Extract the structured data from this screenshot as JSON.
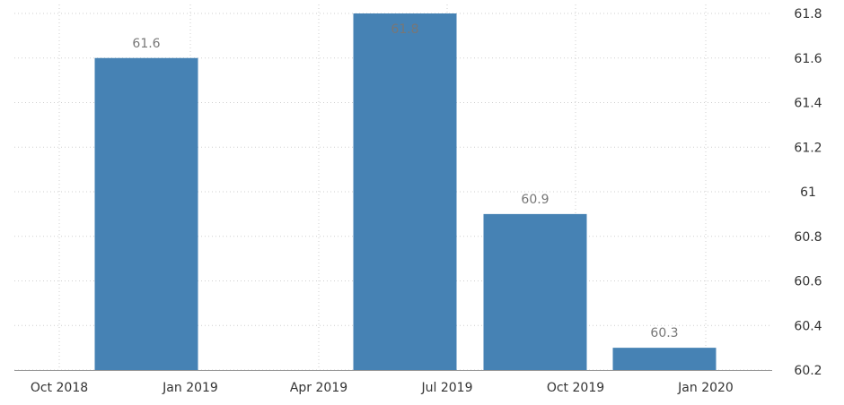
{
  "chart_data": {
    "type": "bar",
    "x_ticks": [
      "Oct 2018",
      "Jan 2019",
      "Apr 2019",
      "Jul 2019",
      "Oct 2019",
      "Jan 2020"
    ],
    "categories": [
      "Dec 2018",
      "Jun 2019",
      "Sep 2019",
      "Dec 2019"
    ],
    "values": [
      61.6,
      61.8,
      60.9,
      60.3
    ],
    "data_labels": [
      "61.6",
      "61.8",
      "60.9",
      "60.3"
    ],
    "ylim": [
      60.2,
      61.8
    ],
    "y_ticks": [
      "61.8",
      "61.6",
      "61.4",
      "61.2",
      "61",
      "60.8",
      "60.6",
      "60.4",
      "60.2"
    ],
    "y_axis_side": "right",
    "grid": true,
    "colors": {
      "bar": "#4682b4",
      "grid": "#cfcfcf",
      "label": "#777777"
    },
    "title": "",
    "xlabel": "",
    "ylabel": ""
  }
}
